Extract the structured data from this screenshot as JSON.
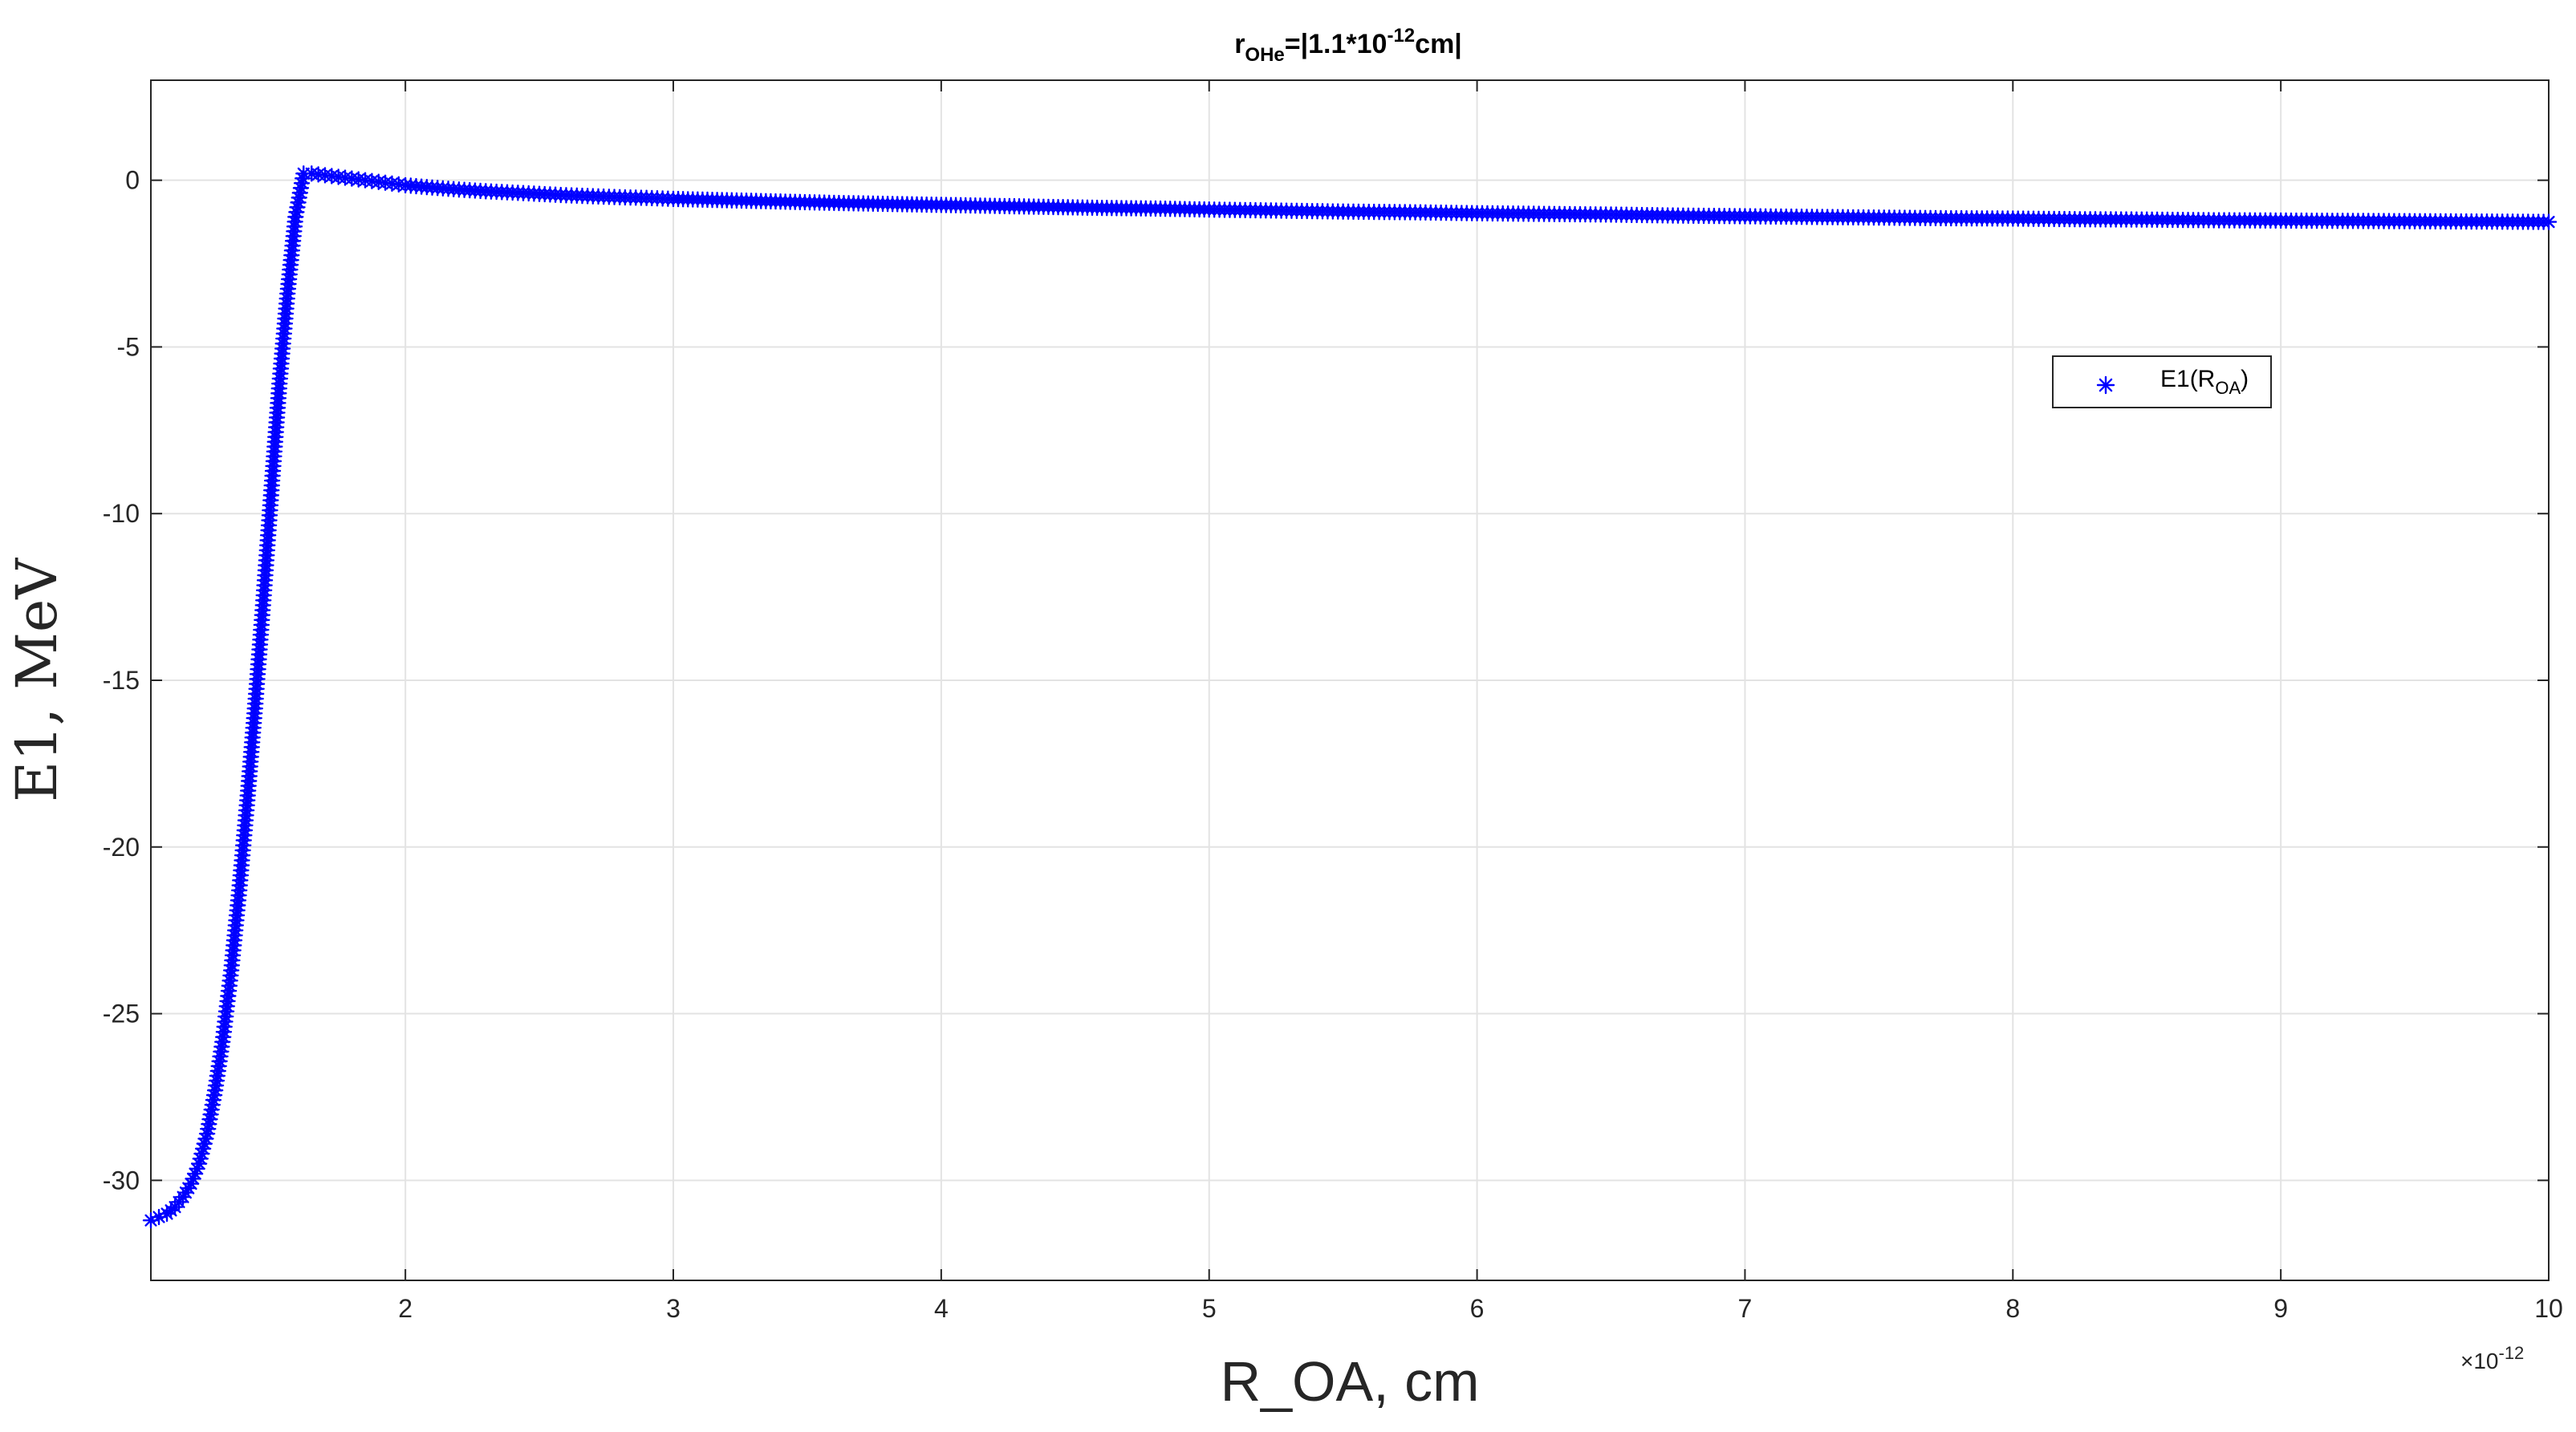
{
  "chart_data": {
    "type": "scatter",
    "title": {
      "r": "r",
      "sub": "OHe",
      "eq": "=|1.1*10",
      "sup": "-12",
      "end": "cm|"
    },
    "xlabel": "R_OA, cm",
    "ylabel": "E1, MeV",
    "x_exponent": {
      "times": "×10",
      "power": "-12"
    },
    "xlim": [
      1.05e-12,
      1e-11
    ],
    "ylim": [
      -33,
      3
    ],
    "xticks": [
      {
        "value": 2e-12,
        "label": "2"
      },
      {
        "value": 3e-12,
        "label": "3"
      },
      {
        "value": 4e-12,
        "label": "4"
      },
      {
        "value": 5e-12,
        "label": "5"
      },
      {
        "value": 6e-12,
        "label": "6"
      },
      {
        "value": 7e-12,
        "label": "7"
      },
      {
        "value": 8e-12,
        "label": "8"
      },
      {
        "value": 9e-12,
        "label": "9"
      },
      {
        "value": 1e-11,
        "label": "10"
      }
    ],
    "yticks": [
      {
        "value": 0,
        "label": "0"
      },
      {
        "value": -5,
        "label": "-5"
      },
      {
        "value": -10,
        "label": "-10"
      },
      {
        "value": -15,
        "label": "-15"
      },
      {
        "value": -20,
        "label": "-20"
      },
      {
        "value": -25,
        "label": "-25"
      },
      {
        "value": -30,
        "label": "-30"
      }
    ],
    "grid": true,
    "legend_position": "upper-right",
    "series": [
      {
        "name": {
          "main": "E1(R",
          "sub": "OA",
          "close": ")"
        },
        "marker": "asterisk",
        "color": "#0000FF",
        "x": [
          1.05e-12,
          1.08e-12,
          1.11e-12,
          1.14e-12,
          1.17e-12,
          1.2e-12,
          1.23e-12,
          1.26e-12,
          1.29e-12,
          1.32e-12,
          1.35e-12,
          1.38e-12,
          1.41e-12,
          1.44e-12,
          1.47e-12,
          1.5e-12,
          1.53e-12,
          1.56e-12,
          1.59e-12,
          1.62e-12,
          1.65e-12,
          1.7e-12,
          1.75e-12,
          1.8e-12,
          1.85e-12,
          1.9e-12,
          1.95e-12,
          2e-12,
          2.1e-12,
          2.2e-12,
          2.3e-12,
          2.4e-12,
          2.5e-12,
          2.6e-12,
          2.7e-12,
          2.8e-12,
          2.9e-12,
          3e-12,
          3.2e-12,
          3.4e-12,
          3.6e-12,
          3.8e-12,
          4e-12,
          4.2e-12,
          4.4e-12,
          4.6e-12,
          4.8e-12,
          5e-12,
          5.25e-12,
          5.5e-12,
          5.75e-12,
          6e-12,
          6.25e-12,
          6.5e-12,
          6.75e-12,
          7e-12,
          7.25e-12,
          7.5e-12,
          7.75e-12,
          8e-12,
          8.25e-12,
          8.5e-12,
          8.75e-12,
          9e-12,
          9.25e-12,
          9.5e-12,
          9.75e-12,
          1e-11
        ],
        "y": [
          -31.2,
          -31.1,
          -31.0,
          -30.8,
          -30.5,
          -30.1,
          -29.5,
          -28.6,
          -27.3,
          -25.7,
          -23.7,
          -21.3,
          -18.6,
          -15.7,
          -12.6,
          -9.3,
          -6.1,
          -3.4,
          -1.1,
          0.2,
          0.2,
          0.15,
          0.1,
          0.05,
          0.0,
          -0.05,
          -0.1,
          -0.15,
          -0.22,
          -0.28,
          -0.33,
          -0.37,
          -0.41,
          -0.45,
          -0.48,
          -0.51,
          -0.53,
          -0.56,
          -0.6,
          -0.64,
          -0.68,
          -0.71,
          -0.74,
          -0.77,
          -0.8,
          -0.83,
          -0.85,
          -0.88,
          -0.91,
          -0.94,
          -0.96,
          -0.99,
          -1.01,
          -1.03,
          -1.06,
          -1.08,
          -1.1,
          -1.12,
          -1.14,
          -1.15,
          -1.17,
          -1.18,
          -1.2,
          -1.21,
          -1.22,
          -1.23,
          -1.24,
          -1.25
        ]
      }
    ]
  }
}
